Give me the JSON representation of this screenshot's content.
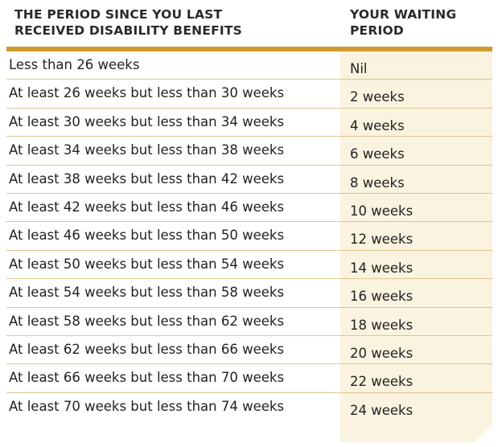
{
  "table": {
    "header": {
      "col1_line1": "THE PERIOD SINCE YOU LAST",
      "col1_line2": "RECEIVED DISABILITY BENEFITS",
      "col2_line1": "YOUR WAITING",
      "col2_line2": "PERIOD"
    },
    "rows": [
      {
        "period": "Less than 26 weeks",
        "waiting": "Nil"
      },
      {
        "period": "At least 26 weeks but less than 30 weeks",
        "waiting": "2 weeks"
      },
      {
        "period": "At least 30 weeks but less than 34 weeks",
        "waiting": "4 weeks"
      },
      {
        "period": "At least 34 weeks but less than 38 weeks",
        "waiting": "6 weeks"
      },
      {
        "period": "At least 38 weeks but less than 42 weeks",
        "waiting": "8 weeks"
      },
      {
        "period": "At least 42 weeks but less than 46 weeks",
        "waiting": "10 weeks"
      },
      {
        "period": "At least 46 weeks but less than 50 weeks",
        "waiting": "12 weeks"
      },
      {
        "period": "At least 50 weeks but less than 54 weeks",
        "waiting": "14 weeks"
      },
      {
        "period": "At least 54 weeks but less than 58 weeks",
        "waiting": "16 weeks"
      },
      {
        "period": "At least 58 weeks but less than 62 weeks",
        "waiting": "18 weeks"
      },
      {
        "period": "At least 62 weeks but less than 66 weeks",
        "waiting": "20 weeks"
      },
      {
        "period": "At least 66 weeks but less than 70 weeks",
        "waiting": "22 weeks"
      },
      {
        "period": "At least 70 weeks but less than 74 weeks",
        "waiting": "24 weeks"
      }
    ]
  },
  "colors": {
    "accent": "#d09b2c",
    "shade": "#faf3df",
    "divider": "#d9c690"
  }
}
